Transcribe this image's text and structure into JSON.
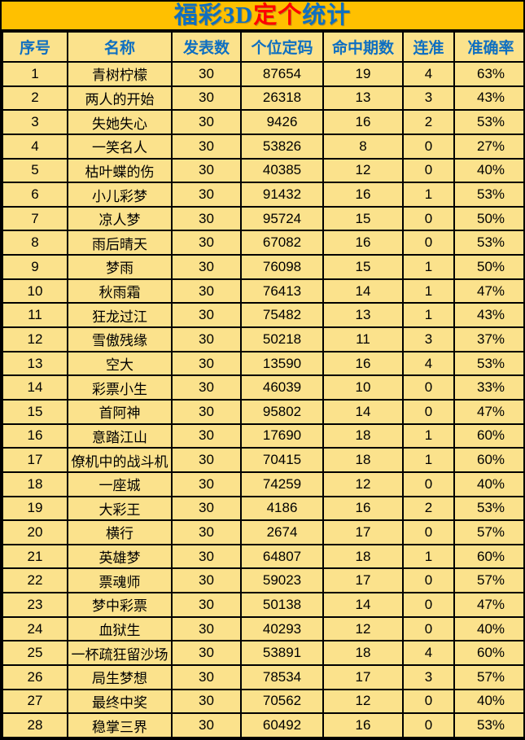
{
  "title": {
    "part1": "福彩3D",
    "part2": "定个",
    "part3": "统计"
  },
  "colors": {
    "title_background": "#FFC000",
    "cell_background": "#FBE28C",
    "title_blue": "#0E6FC1",
    "title_red": "#FF0000",
    "header_text_blue": "#0E6FC1",
    "body_text": "#000000",
    "grid_border": "#000000"
  },
  "table": {
    "headers": [
      "序号",
      "名称",
      "发表数",
      "个位定码",
      "命中期数",
      "连准",
      "准确率"
    ],
    "rows": [
      [
        "1",
        "青树柠檬",
        "30",
        "87654",
        "19",
        "4",
        "63%"
      ],
      [
        "2",
        "两人的开始",
        "30",
        "26318",
        "13",
        "3",
        "43%"
      ],
      [
        "3",
        "失她失心",
        "30",
        "9426",
        "16",
        "2",
        "53%"
      ],
      [
        "4",
        "一笑名人",
        "30",
        "53826",
        "8",
        "0",
        "27%"
      ],
      [
        "5",
        "枯叶蝶的伤",
        "30",
        "40385",
        "12",
        "0",
        "40%"
      ],
      [
        "6",
        "小儿彩梦",
        "30",
        "91432",
        "16",
        "1",
        "53%"
      ],
      [
        "7",
        "凉人梦",
        "30",
        "95724",
        "15",
        "0",
        "50%"
      ],
      [
        "8",
        "雨后晴天",
        "30",
        "67082",
        "16",
        "0",
        "53%"
      ],
      [
        "9",
        "梦雨",
        "30",
        "76098",
        "15",
        "1",
        "50%"
      ],
      [
        "10",
        "秋雨霜",
        "30",
        "76413",
        "14",
        "1",
        "47%"
      ],
      [
        "11",
        "狂龙过江",
        "30",
        "75482",
        "13",
        "1",
        "43%"
      ],
      [
        "12",
        "雪傲残缘",
        "30",
        "50218",
        "11",
        "3",
        "37%"
      ],
      [
        "13",
        "空大",
        "30",
        "13590",
        "16",
        "4",
        "53%"
      ],
      [
        "14",
        "彩票小生",
        "30",
        "46039",
        "10",
        "0",
        "33%"
      ],
      [
        "15",
        "首阿神",
        "30",
        "95802",
        "14",
        "0",
        "47%"
      ],
      [
        "16",
        "意踏江山",
        "30",
        "17690",
        "18",
        "1",
        "60%"
      ],
      [
        "17",
        "僚机中的战斗机",
        "30",
        "70415",
        "18",
        "1",
        "60%"
      ],
      [
        "18",
        "一座城",
        "30",
        "74259",
        "12",
        "0",
        "40%"
      ],
      [
        "19",
        "大彩王",
        "30",
        "4186",
        "16",
        "2",
        "53%"
      ],
      [
        "20",
        "横行",
        "30",
        "2674",
        "17",
        "0",
        "57%"
      ],
      [
        "21",
        "英雄梦",
        "30",
        "64807",
        "18",
        "1",
        "60%"
      ],
      [
        "22",
        "票魂师",
        "30",
        "59023",
        "17",
        "0",
        "57%"
      ],
      [
        "23",
        "梦中彩票",
        "30",
        "50138",
        "14",
        "0",
        "47%"
      ],
      [
        "24",
        "血狱生",
        "30",
        "40293",
        "12",
        "0",
        "40%"
      ],
      [
        "25",
        "一杯疏狂留沙场",
        "30",
        "53891",
        "18",
        "4",
        "60%"
      ],
      [
        "26",
        "局生梦想",
        "30",
        "78534",
        "17",
        "3",
        "57%"
      ],
      [
        "27",
        "最终中奖",
        "30",
        "70562",
        "12",
        "0",
        "40%"
      ],
      [
        "28",
        "稳掌三界",
        "30",
        "60492",
        "16",
        "0",
        "53%"
      ]
    ]
  },
  "chart_data": {
    "type": "table",
    "title": "福彩3D定个统计",
    "columns": [
      "序号",
      "名称",
      "发表数",
      "个位定码",
      "命中期数",
      "连准",
      "准确率"
    ],
    "rows": [
      [
        "1",
        "青树柠檬",
        "30",
        "87654",
        "19",
        "4",
        "63%"
      ],
      [
        "2",
        "两人的开始",
        "30",
        "26318",
        "13",
        "3",
        "43%"
      ],
      [
        "3",
        "失她失心",
        "30",
        "9426",
        "16",
        "2",
        "53%"
      ],
      [
        "4",
        "一笑名人",
        "30",
        "53826",
        "8",
        "0",
        "27%"
      ],
      [
        "5",
        "枯叶蝶的伤",
        "30",
        "40385",
        "12",
        "0",
        "40%"
      ],
      [
        "6",
        "小儿彩梦",
        "30",
        "91432",
        "16",
        "1",
        "53%"
      ],
      [
        "7",
        "凉人梦",
        "30",
        "95724",
        "15",
        "0",
        "50%"
      ],
      [
        "8",
        "雨后晴天",
        "30",
        "67082",
        "16",
        "0",
        "53%"
      ],
      [
        "9",
        "梦雨",
        "30",
        "76098",
        "15",
        "1",
        "50%"
      ],
      [
        "10",
        "秋雨霜",
        "30",
        "76413",
        "14",
        "1",
        "47%"
      ],
      [
        "11",
        "狂龙过江",
        "30",
        "75482",
        "13",
        "1",
        "43%"
      ],
      [
        "12",
        "雪傲残缘",
        "30",
        "50218",
        "11",
        "3",
        "37%"
      ],
      [
        "13",
        "空大",
        "30",
        "13590",
        "16",
        "4",
        "53%"
      ],
      [
        "14",
        "彩票小生",
        "30",
        "46039",
        "10",
        "0",
        "33%"
      ],
      [
        "15",
        "首阿神",
        "30",
        "95802",
        "14",
        "0",
        "47%"
      ],
      [
        "16",
        "意踏江山",
        "30",
        "17690",
        "18",
        "1",
        "60%"
      ],
      [
        "17",
        "僚机中的战斗机",
        "30",
        "70415",
        "18",
        "1",
        "60%"
      ],
      [
        "18",
        "一座城",
        "30",
        "74259",
        "12",
        "0",
        "40%"
      ],
      [
        "19",
        "大彩王",
        "30",
        "4186",
        "16",
        "2",
        "53%"
      ],
      [
        "20",
        "横行",
        "30",
        "2674",
        "17",
        "0",
        "57%"
      ],
      [
        "21",
        "英雄梦",
        "30",
        "64807",
        "18",
        "1",
        "60%"
      ],
      [
        "22",
        "票魂师",
        "30",
        "59023",
        "17",
        "0",
        "57%"
      ],
      [
        "23",
        "梦中彩票",
        "30",
        "50138",
        "14",
        "0",
        "47%"
      ],
      [
        "24",
        "血狱生",
        "30",
        "40293",
        "12",
        "0",
        "40%"
      ],
      [
        "25",
        "一杯疏狂留沙场",
        "30",
        "53891",
        "18",
        "4",
        "60%"
      ],
      [
        "26",
        "局生梦想",
        "30",
        "78534",
        "17",
        "3",
        "57%"
      ],
      [
        "27",
        "最终中奖",
        "30",
        "70562",
        "12",
        "0",
        "40%"
      ],
      [
        "28",
        "稳掌三界",
        "30",
        "60492",
        "16",
        "0",
        "53%"
      ]
    ]
  }
}
